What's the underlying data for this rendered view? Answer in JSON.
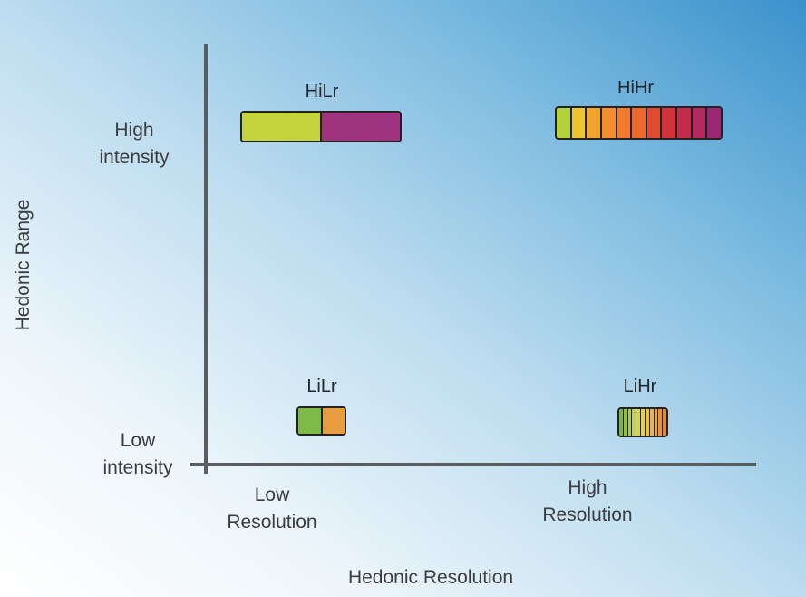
{
  "diagram": {
    "y_axis_title": "Hedonic Range",
    "x_axis_title": "Hedonic Resolution",
    "y_ticks": {
      "high": [
        "High",
        "intensity"
      ],
      "low": [
        "Low",
        "intensity"
      ]
    },
    "x_ticks": {
      "low": [
        "Low",
        "Resolution"
      ],
      "high": [
        "High",
        "Resolution"
      ]
    },
    "quadrants": [
      {
        "id": "hilr",
        "label": "HiLr",
        "colors": [
          "#c5d43c",
          "#a0337f"
        ]
      },
      {
        "id": "hihr",
        "label": "HiHr",
        "colors": [
          "#b2d23a",
          "#ecc62c",
          "#f3a42a",
          "#f48d2c",
          "#f47b29",
          "#ef6a2a",
          "#e04a2e",
          "#d3323a",
          "#c42b4a",
          "#b22a5e",
          "#9b2775"
        ]
      },
      {
        "id": "lilr",
        "label": "LiLr",
        "colors": [
          "#7dba48",
          "#e89d40"
        ]
      },
      {
        "id": "lihr",
        "label": "LiHr",
        "colors": [
          "#7cb544",
          "#94c044",
          "#accb46",
          "#c3d24a",
          "#d5d54c",
          "#e2cf4c",
          "#eac34a",
          "#ecb446",
          "#eca542",
          "#e9953e",
          "#e5863a"
        ]
      }
    ]
  }
}
